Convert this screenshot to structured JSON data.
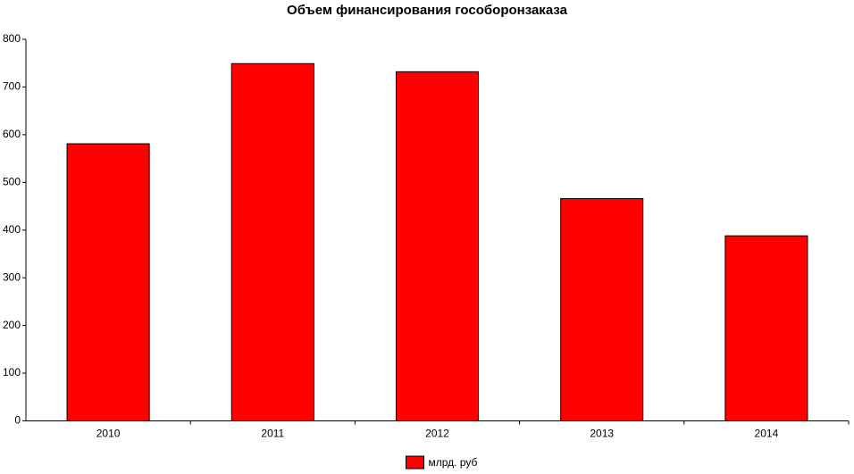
{
  "chart_data": {
    "type": "bar",
    "title": "Объем финансирования гособоронзаказа",
    "categories": [
      "2010",
      "2011",
      "2012",
      "2013",
      "2014"
    ],
    "series": [
      {
        "name": "млрд. руб",
        "color": "#ff0000",
        "values": [
          581,
          749,
          732,
          466,
          388
        ]
      }
    ],
    "ylim": [
      0,
      800
    ],
    "yticks": [
      0,
      100,
      200,
      300,
      400,
      500,
      600,
      700,
      800
    ],
    "grid": false,
    "legend": "bottom"
  }
}
